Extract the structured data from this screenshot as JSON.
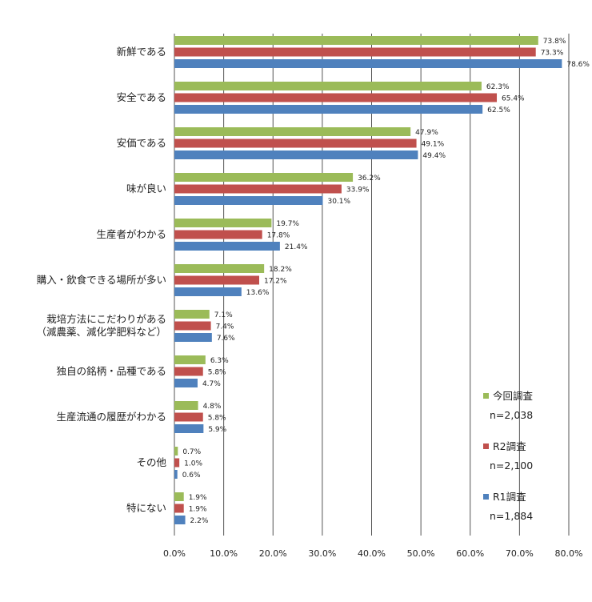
{
  "chart_data": {
    "type": "bar",
    "orientation": "horizontal",
    "categories": [
      [
        "新鮮である"
      ],
      [
        "安全である"
      ],
      [
        "安価である"
      ],
      [
        "味が良い"
      ],
      [
        "生産者がわかる"
      ],
      [
        "購入・飲食できる場所が多い"
      ],
      [
        "栽培方法にこだわりがある",
        "（減農薬、減化学肥料など）"
      ],
      [
        "独自の銘柄・品種である"
      ],
      [
        "生産流通の履歴がわかる"
      ],
      [
        "その他"
      ],
      [
        "特にない"
      ]
    ],
    "series": [
      {
        "name": "今回調査",
        "sample": "n=2,038",
        "color": "#9BBB59",
        "values": [
          73.8,
          62.3,
          47.9,
          36.2,
          19.7,
          18.2,
          7.1,
          6.3,
          4.8,
          0.7,
          1.9
        ],
        "labels": [
          "73.8%",
          "62.3%",
          "47.9%",
          "36.2%",
          "19.7%",
          "18.2%",
          "7.1%",
          "6.3%",
          "4.8%",
          "0.7%",
          "1.9%"
        ]
      },
      {
        "name": "R2調査",
        "sample": "n=2,100",
        "color": "#C0504D",
        "values": [
          73.3,
          65.4,
          49.1,
          33.9,
          17.8,
          17.2,
          7.4,
          5.8,
          5.8,
          1.0,
          1.9
        ],
        "labels": [
          "73.3%",
          "65.4%",
          "49.1%",
          "33.9%",
          "17.8%",
          "17.2%",
          "7.4%",
          "5.8%",
          "5.8%",
          "1.0%",
          "1.9%"
        ]
      },
      {
        "name": "R1調査",
        "sample": "n=1,884",
        "color": "#4F81BD",
        "values": [
          78.6,
          62.5,
          49.4,
          30.1,
          21.4,
          13.6,
          7.6,
          4.7,
          5.9,
          0.6,
          2.2
        ],
        "labels": [
          "78.6%",
          "62.5%",
          "49.4%",
          "30.1%",
          "21.4%",
          "13.6%",
          "7.6%",
          "4.7%",
          "5.9%",
          "0.6%",
          "2.2%"
        ]
      }
    ],
    "xlim": [
      0,
      80
    ],
    "xticks": [
      "0.0%",
      "10.0%",
      "20.0%",
      "30.0%",
      "40.0%",
      "50.0%",
      "60.0%",
      "70.0%",
      "80.0%"
    ],
    "grid": "vertical",
    "legend_position": "bottom-right"
  }
}
